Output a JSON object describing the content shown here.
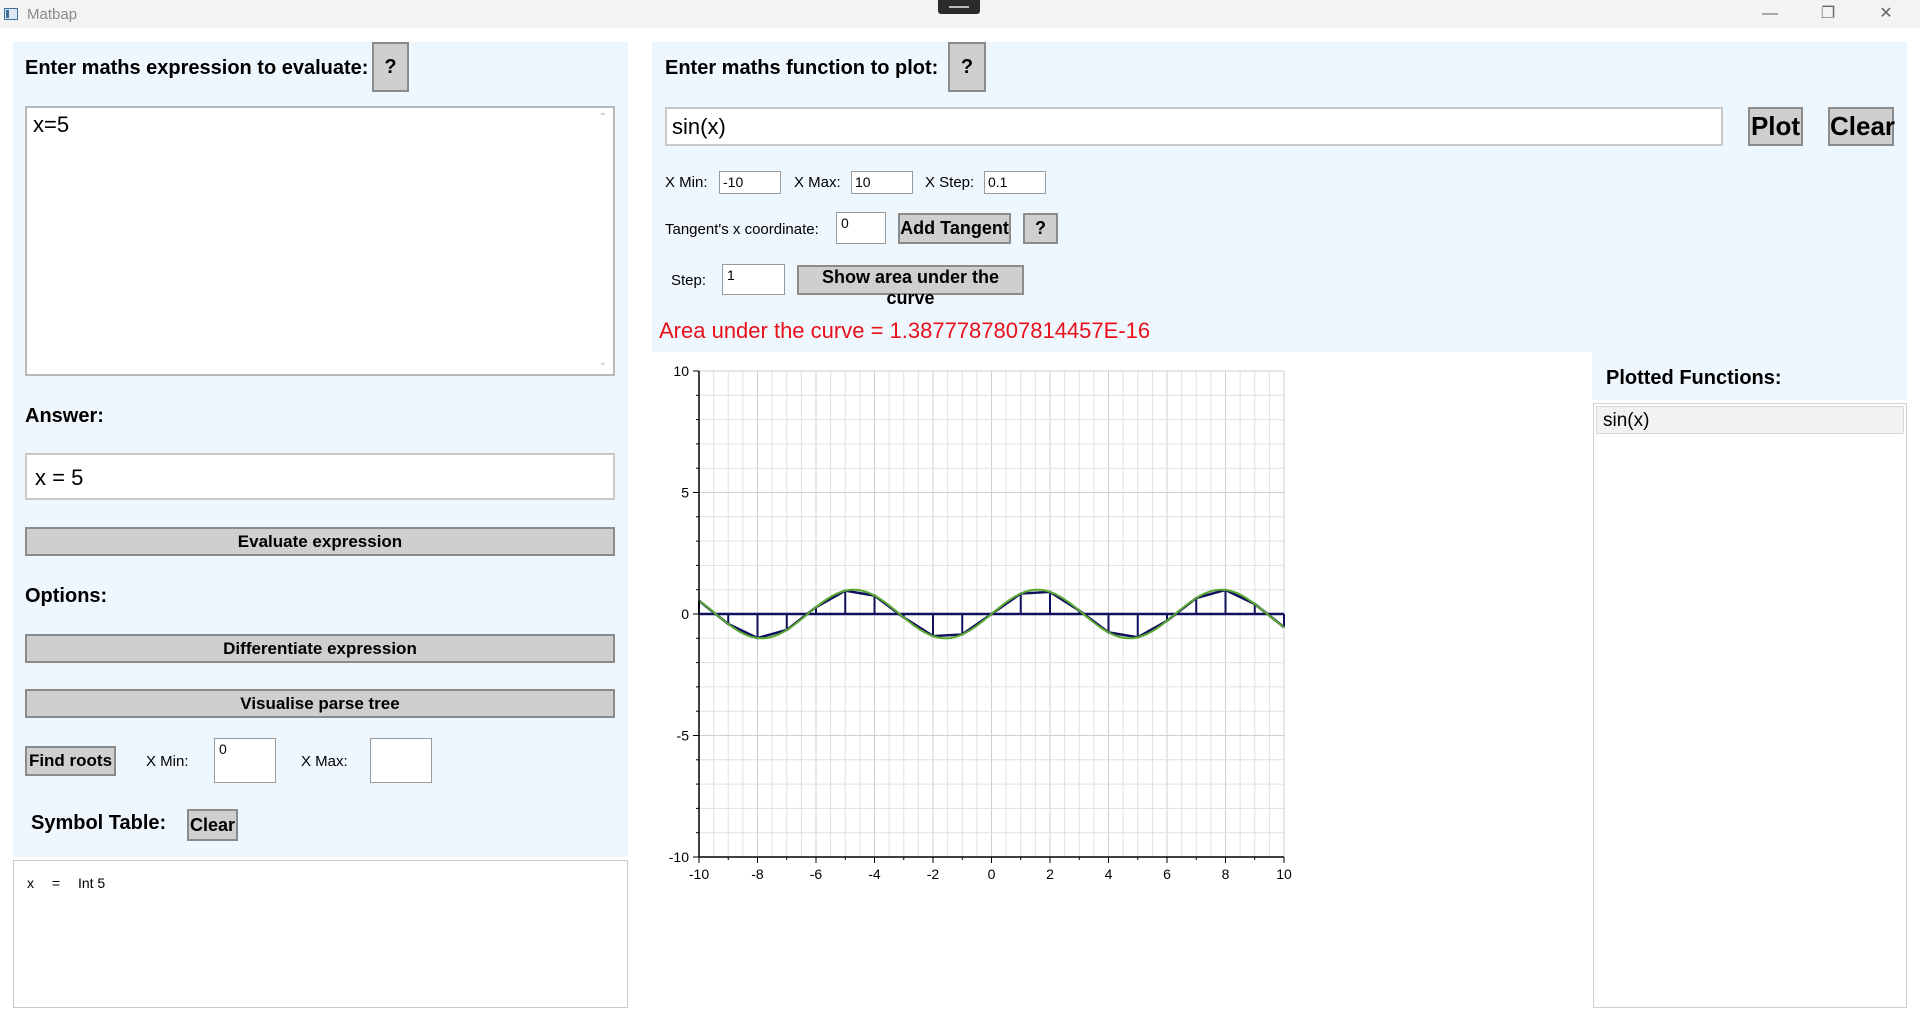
{
  "window": {
    "title": "Matbap",
    "minimize_glyph": "—",
    "maximize_glyph": "❐",
    "close_glyph": "✕"
  },
  "left": {
    "expr_label": "Enter maths expression to evaluate:",
    "help_label": "?",
    "expr_value": "x=5",
    "answer_label": "Answer:",
    "answer_value": "x = 5",
    "evaluate_label": "Evaluate expression",
    "options_label": "Options:",
    "differentiate_label": "Differentiate expression",
    "parse_tree_label": "Visualise parse tree",
    "find_roots_label": "Find roots",
    "xmin_label": "X Min:",
    "xmin_value": "0",
    "xmax_label": "X Max:",
    "xmax_value": "",
    "symbol_table_label": "Symbol Table:",
    "clear_label": "Clear",
    "symbol_rows": [
      {
        "name": "x",
        "eq": "=",
        "value": "Int 5"
      }
    ]
  },
  "plot": {
    "func_label": "Enter maths function to plot:",
    "help_label": "?",
    "func_value": "sin(x)",
    "plot_label": "Plot",
    "clear_label": "Clear",
    "xmin_label": "X Min:",
    "xmin_value": "-10",
    "xmax_label": "X Max:",
    "xmax_value": "10",
    "xstep_label": "X Step:",
    "xstep_value": "0.1",
    "tangent_label": "Tangent's x coordinate:",
    "tangent_value": "0",
    "add_tangent_label": "Add Tangent",
    "tangent_help_label": "?",
    "step_label": "Step:",
    "step_value": "1",
    "show_area_label": "Show area under the curve",
    "area_result": "Area under the curve = 1.3877787807814457E-16",
    "area_color": "#e8101a",
    "plotted_label": "Plotted Functions:",
    "plotted_items": [
      "sin(x)"
    ]
  },
  "chart_data": {
    "type": "line",
    "function": "sin(x)",
    "xlim": [
      -10,
      10
    ],
    "ylim": [
      -10,
      10
    ],
    "x_step": 0.1,
    "x_ticks": [
      "-10",
      "-8",
      "-6",
      "-4",
      "-2",
      "0",
      "2",
      "4",
      "6",
      "8",
      "10"
    ],
    "y_ticks": [
      "10",
      "5",
      "0",
      "-5",
      "-10"
    ],
    "grid": true,
    "curve_color": "#5aa832",
    "area_color": "#10105e",
    "area_step": 1
  }
}
